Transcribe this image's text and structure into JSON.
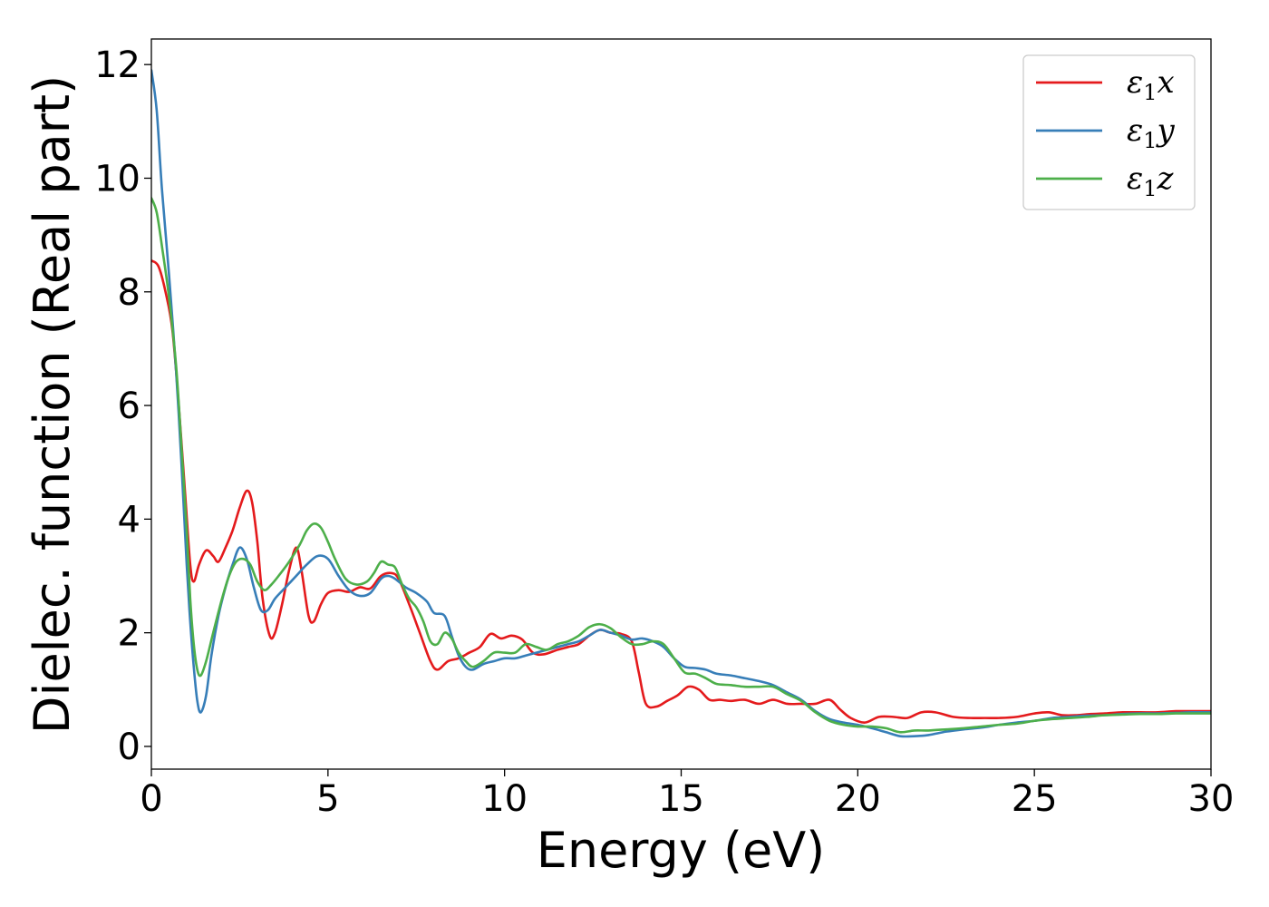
{
  "chart_data": {
    "type": "line",
    "title": "",
    "xlabel": "Energy (eV)",
    "ylabel": "Dielec. function (Real part)",
    "xlim": [
      0,
      30
    ],
    "ylim": [
      -0.4,
      12.45
    ],
    "xticks": [
      0,
      5,
      10,
      15,
      20,
      25,
      30
    ],
    "yticks": [
      0,
      2,
      4,
      6,
      8,
      10,
      12
    ],
    "grid": false,
    "legend_position": "top-right",
    "series": [
      {
        "name": "ε₁x",
        "legend_main": "ε",
        "legend_sub": "1",
        "legend_suffix": "x",
        "color": "#e41a1c",
        "points": [
          [
            0,
            8.55
          ],
          [
            0.2,
            8.45
          ],
          [
            0.4,
            8.0
          ],
          [
            0.6,
            7.3
          ],
          [
            0.8,
            5.8
          ],
          [
            0.95,
            4.5
          ],
          [
            1.1,
            3.2
          ],
          [
            1.2,
            2.9
          ],
          [
            1.35,
            3.2
          ],
          [
            1.55,
            3.45
          ],
          [
            1.75,
            3.35
          ],
          [
            1.9,
            3.25
          ],
          [
            2.1,
            3.5
          ],
          [
            2.3,
            3.8
          ],
          [
            2.5,
            4.2
          ],
          [
            2.7,
            4.5
          ],
          [
            2.85,
            4.3
          ],
          [
            3.0,
            3.6
          ],
          [
            3.15,
            2.6
          ],
          [
            3.35,
            1.95
          ],
          [
            3.5,
            2.0
          ],
          [
            3.7,
            2.5
          ],
          [
            3.9,
            3.1
          ],
          [
            4.1,
            3.5
          ],
          [
            4.25,
            3.1
          ],
          [
            4.45,
            2.3
          ],
          [
            4.6,
            2.2
          ],
          [
            4.8,
            2.5
          ],
          [
            5.0,
            2.7
          ],
          [
            5.3,
            2.75
          ],
          [
            5.6,
            2.72
          ],
          [
            5.9,
            2.8
          ],
          [
            6.2,
            2.78
          ],
          [
            6.5,
            3.0
          ],
          [
            6.8,
            3.05
          ],
          [
            7.0,
            2.95
          ],
          [
            7.3,
            2.5
          ],
          [
            7.6,
            2.0
          ],
          [
            7.9,
            1.5
          ],
          [
            8.1,
            1.35
          ],
          [
            8.4,
            1.5
          ],
          [
            8.7,
            1.55
          ],
          [
            9.0,
            1.65
          ],
          [
            9.3,
            1.75
          ],
          [
            9.6,
            1.98
          ],
          [
            9.9,
            1.9
          ],
          [
            10.2,
            1.95
          ],
          [
            10.5,
            1.88
          ],
          [
            10.8,
            1.65
          ],
          [
            11.1,
            1.62
          ],
          [
            11.5,
            1.7
          ],
          [
            11.8,
            1.75
          ],
          [
            12.1,
            1.8
          ],
          [
            12.4,
            1.95
          ],
          [
            12.7,
            2.05
          ],
          [
            13.0,
            2.0
          ],
          [
            13.3,
            1.98
          ],
          [
            13.6,
            1.85
          ],
          [
            13.8,
            1.3
          ],
          [
            14.0,
            0.75
          ],
          [
            14.3,
            0.7
          ],
          [
            14.6,
            0.8
          ],
          [
            14.9,
            0.9
          ],
          [
            15.2,
            1.05
          ],
          [
            15.5,
            1.0
          ],
          [
            15.8,
            0.82
          ],
          [
            16.1,
            0.82
          ],
          [
            16.4,
            0.8
          ],
          [
            16.8,
            0.82
          ],
          [
            17.2,
            0.75
          ],
          [
            17.6,
            0.82
          ],
          [
            18.0,
            0.75
          ],
          [
            18.4,
            0.75
          ],
          [
            18.8,
            0.75
          ],
          [
            19.2,
            0.82
          ],
          [
            19.5,
            0.65
          ],
          [
            19.8,
            0.5
          ],
          [
            20.2,
            0.42
          ],
          [
            20.6,
            0.52
          ],
          [
            21.0,
            0.52
          ],
          [
            21.4,
            0.5
          ],
          [
            21.8,
            0.6
          ],
          [
            22.2,
            0.6
          ],
          [
            22.7,
            0.52
          ],
          [
            23.2,
            0.5
          ],
          [
            23.6,
            0.5
          ],
          [
            24.0,
            0.5
          ],
          [
            24.5,
            0.52
          ],
          [
            25.0,
            0.58
          ],
          [
            25.4,
            0.6
          ],
          [
            25.8,
            0.55
          ],
          [
            26.2,
            0.55
          ],
          [
            26.6,
            0.57
          ],
          [
            27.0,
            0.58
          ],
          [
            27.5,
            0.6
          ],
          [
            28.0,
            0.6
          ],
          [
            28.5,
            0.6
          ],
          [
            29.0,
            0.62
          ],
          [
            29.5,
            0.62
          ],
          [
            30.0,
            0.62
          ]
        ]
      },
      {
        "name": "ε₁y",
        "legend_main": "ε",
        "legend_sub": "1",
        "legend_suffix": "y",
        "color": "#377eb8",
        "points": [
          [
            0,
            11.9
          ],
          [
            0.15,
            11.2
          ],
          [
            0.3,
            9.8
          ],
          [
            0.5,
            8.3
          ],
          [
            0.7,
            6.6
          ],
          [
            0.85,
            5.0
          ],
          [
            1.0,
            3.2
          ],
          [
            1.1,
            2.2
          ],
          [
            1.2,
            1.4
          ],
          [
            1.3,
            0.8
          ],
          [
            1.4,
            0.6
          ],
          [
            1.55,
            0.9
          ],
          [
            1.7,
            1.6
          ],
          [
            1.9,
            2.3
          ],
          [
            2.1,
            2.8
          ],
          [
            2.3,
            3.2
          ],
          [
            2.5,
            3.5
          ],
          [
            2.7,
            3.3
          ],
          [
            2.9,
            2.8
          ],
          [
            3.1,
            2.4
          ],
          [
            3.3,
            2.4
          ],
          [
            3.5,
            2.6
          ],
          [
            3.8,
            2.8
          ],
          [
            4.1,
            3.0
          ],
          [
            4.4,
            3.2
          ],
          [
            4.7,
            3.35
          ],
          [
            5.0,
            3.3
          ],
          [
            5.3,
            3.0
          ],
          [
            5.6,
            2.75
          ],
          [
            5.9,
            2.65
          ],
          [
            6.2,
            2.7
          ],
          [
            6.5,
            2.95
          ],
          [
            6.7,
            3.0
          ],
          [
            6.9,
            2.95
          ],
          [
            7.2,
            2.8
          ],
          [
            7.5,
            2.7
          ],
          [
            7.8,
            2.55
          ],
          [
            8.0,
            2.35
          ],
          [
            8.3,
            2.3
          ],
          [
            8.5,
            1.95
          ],
          [
            8.7,
            1.6
          ],
          [
            8.9,
            1.4
          ],
          [
            9.1,
            1.35
          ],
          [
            9.4,
            1.45
          ],
          [
            9.7,
            1.5
          ],
          [
            10.0,
            1.55
          ],
          [
            10.3,
            1.55
          ],
          [
            10.6,
            1.6
          ],
          [
            10.9,
            1.65
          ],
          [
            11.2,
            1.7
          ],
          [
            11.5,
            1.75
          ],
          [
            11.8,
            1.8
          ],
          [
            12.1,
            1.85
          ],
          [
            12.4,
            1.95
          ],
          [
            12.7,
            2.05
          ],
          [
            13.0,
            2.0
          ],
          [
            13.3,
            1.95
          ],
          [
            13.6,
            1.88
          ],
          [
            13.9,
            1.9
          ],
          [
            14.2,
            1.85
          ],
          [
            14.5,
            1.75
          ],
          [
            14.8,
            1.55
          ],
          [
            15.1,
            1.4
          ],
          [
            15.4,
            1.38
          ],
          [
            15.7,
            1.35
          ],
          [
            16.0,
            1.28
          ],
          [
            16.4,
            1.25
          ],
          [
            16.8,
            1.2
          ],
          [
            17.2,
            1.15
          ],
          [
            17.6,
            1.08
          ],
          [
            18.0,
            0.95
          ],
          [
            18.4,
            0.82
          ],
          [
            18.8,
            0.62
          ],
          [
            19.2,
            0.48
          ],
          [
            19.6,
            0.42
          ],
          [
            20.0,
            0.38
          ],
          [
            20.4,
            0.32
          ],
          [
            20.8,
            0.25
          ],
          [
            21.2,
            0.18
          ],
          [
            21.6,
            0.18
          ],
          [
            22.0,
            0.2
          ],
          [
            22.5,
            0.26
          ],
          [
            23.0,
            0.3
          ],
          [
            23.5,
            0.33
          ],
          [
            24.0,
            0.38
          ],
          [
            24.5,
            0.42
          ],
          [
            25.0,
            0.45
          ],
          [
            25.5,
            0.5
          ],
          [
            26.0,
            0.52
          ],
          [
            26.5,
            0.54
          ],
          [
            27.0,
            0.55
          ],
          [
            27.5,
            0.57
          ],
          [
            28.0,
            0.58
          ],
          [
            28.5,
            0.58
          ],
          [
            29.0,
            0.59
          ],
          [
            29.5,
            0.6
          ],
          [
            30.0,
            0.6
          ]
        ]
      },
      {
        "name": "ε₁z",
        "legend_main": "ε",
        "legend_sub": "1",
        "legend_suffix": "z",
        "color": "#4daf4a",
        "points": [
          [
            0,
            9.65
          ],
          [
            0.15,
            9.4
          ],
          [
            0.3,
            8.8
          ],
          [
            0.5,
            7.9
          ],
          [
            0.7,
            6.7
          ],
          [
            0.85,
            5.3
          ],
          [
            1.0,
            3.8
          ],
          [
            1.1,
            2.6
          ],
          [
            1.2,
            1.8
          ],
          [
            1.3,
            1.35
          ],
          [
            1.4,
            1.25
          ],
          [
            1.55,
            1.5
          ],
          [
            1.75,
            2.0
          ],
          [
            2.0,
            2.6
          ],
          [
            2.2,
            3.0
          ],
          [
            2.4,
            3.25
          ],
          [
            2.6,
            3.3
          ],
          [
            2.8,
            3.2
          ],
          [
            3.0,
            2.9
          ],
          [
            3.2,
            2.75
          ],
          [
            3.4,
            2.85
          ],
          [
            3.6,
            3.0
          ],
          [
            3.9,
            3.25
          ],
          [
            4.2,
            3.55
          ],
          [
            4.4,
            3.8
          ],
          [
            4.6,
            3.92
          ],
          [
            4.8,
            3.85
          ],
          [
            5.0,
            3.6
          ],
          [
            5.2,
            3.3
          ],
          [
            5.5,
            2.95
          ],
          [
            5.8,
            2.85
          ],
          [
            6.1,
            2.9
          ],
          [
            6.3,
            3.05
          ],
          [
            6.5,
            3.25
          ],
          [
            6.7,
            3.2
          ],
          [
            6.9,
            3.15
          ],
          [
            7.1,
            2.85
          ],
          [
            7.3,
            2.6
          ],
          [
            7.5,
            2.45
          ],
          [
            7.7,
            2.2
          ],
          [
            7.9,
            1.85
          ],
          [
            8.1,
            1.8
          ],
          [
            8.3,
            2.0
          ],
          [
            8.5,
            1.9
          ],
          [
            8.7,
            1.65
          ],
          [
            8.9,
            1.5
          ],
          [
            9.1,
            1.4
          ],
          [
            9.4,
            1.5
          ],
          [
            9.7,
            1.65
          ],
          [
            10.0,
            1.65
          ],
          [
            10.3,
            1.65
          ],
          [
            10.6,
            1.8
          ],
          [
            10.9,
            1.75
          ],
          [
            11.2,
            1.7
          ],
          [
            11.5,
            1.8
          ],
          [
            11.8,
            1.85
          ],
          [
            12.1,
            1.95
          ],
          [
            12.4,
            2.1
          ],
          [
            12.7,
            2.15
          ],
          [
            13.0,
            2.08
          ],
          [
            13.3,
            1.92
          ],
          [
            13.6,
            1.8
          ],
          [
            13.9,
            1.8
          ],
          [
            14.2,
            1.85
          ],
          [
            14.5,
            1.8
          ],
          [
            14.8,
            1.55
          ],
          [
            15.1,
            1.3
          ],
          [
            15.4,
            1.28
          ],
          [
            15.7,
            1.2
          ],
          [
            16.0,
            1.1
          ],
          [
            16.4,
            1.08
          ],
          [
            16.8,
            1.05
          ],
          [
            17.2,
            1.05
          ],
          [
            17.6,
            1.05
          ],
          [
            18.0,
            0.92
          ],
          [
            18.4,
            0.8
          ],
          [
            18.8,
            0.6
          ],
          [
            19.2,
            0.45
          ],
          [
            19.6,
            0.38
          ],
          [
            20.0,
            0.35
          ],
          [
            20.4,
            0.35
          ],
          [
            20.8,
            0.32
          ],
          [
            21.2,
            0.25
          ],
          [
            21.6,
            0.28
          ],
          [
            22.0,
            0.28
          ],
          [
            22.5,
            0.3
          ],
          [
            23.0,
            0.32
          ],
          [
            23.5,
            0.35
          ],
          [
            24.0,
            0.38
          ],
          [
            24.5,
            0.4
          ],
          [
            25.0,
            0.45
          ],
          [
            25.5,
            0.48
          ],
          [
            26.0,
            0.5
          ],
          [
            26.5,
            0.52
          ],
          [
            27.0,
            0.55
          ],
          [
            27.5,
            0.56
          ],
          [
            28.0,
            0.57
          ],
          [
            28.5,
            0.57
          ],
          [
            29.0,
            0.58
          ],
          [
            29.5,
            0.58
          ],
          [
            30.0,
            0.58
          ]
        ]
      }
    ]
  }
}
